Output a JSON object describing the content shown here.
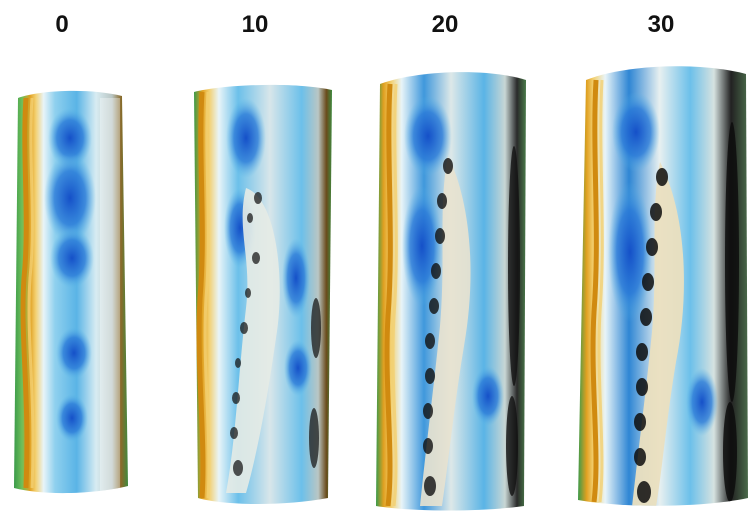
{
  "panels": [
    {
      "label": "0"
    },
    {
      "label": "10"
    },
    {
      "label": "20"
    },
    {
      "label": "30"
    }
  ]
}
